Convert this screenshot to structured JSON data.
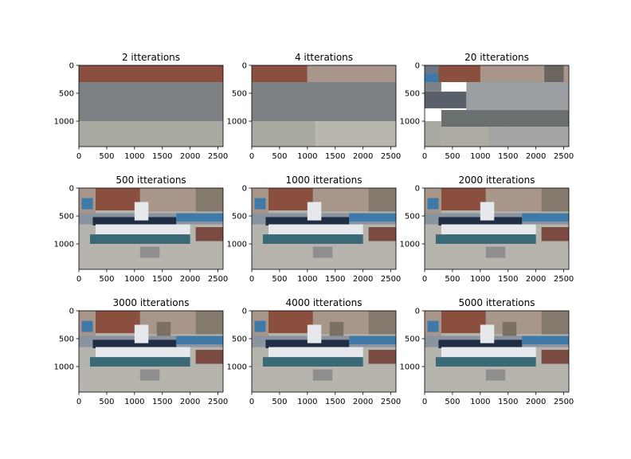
{
  "chart_data": {
    "type": "image-grid",
    "panels": [
      {
        "title": "2 itterations",
        "iterations": 2
      },
      {
        "title": "4 itterations",
        "iterations": 4
      },
      {
        "title": "20 itterations",
        "iterations": 20
      },
      {
        "title": "500 itterations",
        "iterations": 500
      },
      {
        "title": "1000 itterations",
        "iterations": 1000
      },
      {
        "title": "2000 itterations",
        "iterations": 2000
      },
      {
        "title": "3000 itterations",
        "iterations": 3000
      },
      {
        "title": "4000 itterations",
        "iterations": 4000
      },
      {
        "title": "5000 itterations",
        "iterations": 5000
      }
    ],
    "xlim": [
      0,
      2592
    ],
    "ylim": [
      1456,
      0
    ],
    "xticks": [
      0,
      500,
      1000,
      1500,
      2000,
      2500
    ],
    "yticks": [
      0,
      500,
      1000
    ],
    "xtick_labels": [
      "0",
      "500",
      "1000",
      "1500",
      "2000",
      "2500"
    ],
    "ytick_labels": [
      "0",
      "500",
      "1000"
    ],
    "grid": false,
    "colors": {
      "brick": "#8a4f3e",
      "tan": "#a8968a",
      "gray": "#7c8184",
      "light_gray": "#a9a9a2",
      "pale_gray": "#b8b6ae",
      "navy": "#1f2e44",
      "teal": "#3a6a78",
      "blue": "#3f79a8",
      "white": "#e6e8ec"
    }
  }
}
